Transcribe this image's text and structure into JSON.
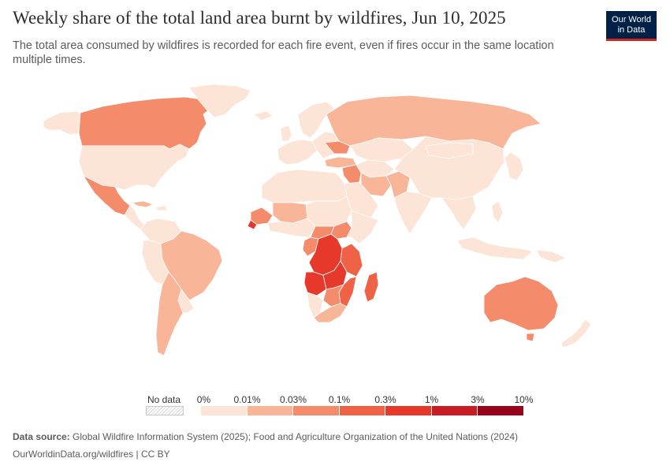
{
  "title": "Weekly share of the total land area burnt by wildfires, Jun 10, 2025",
  "subtitle": "The total area consumed by wildfires is recorded for each fire event, even if fires occur in the same location multiple times.",
  "logo": {
    "line1": "Our World",
    "line2": "in Data"
  },
  "legend": {
    "nodata_label": "No data",
    "bins": [
      {
        "label": "0%",
        "color": "#fce4d7"
      },
      {
        "label": "0.01%",
        "color": "#f8b597"
      },
      {
        "label": "0.03%",
        "color": "#f48c6b"
      },
      {
        "label": "0.1%",
        "color": "#ef6246"
      },
      {
        "label": "0.3%",
        "color": "#e6392b"
      },
      {
        "label": "1%",
        "color": "#c81d24"
      },
      {
        "label": "3%",
        "color": "#96031a"
      }
    ],
    "end_label": "10%"
  },
  "footer": {
    "source_label": "Data source:",
    "source_text": "Global Wildfire Information System (2025); Food and Agriculture Organization of the United Nations (2024)",
    "url": "OurWorldinData.org/wildfires | CC BY"
  },
  "colors": {
    "ocean": "#ffffff",
    "border": "#ffffff",
    "brand": "#002147",
    "accent": "#ce261e"
  }
}
